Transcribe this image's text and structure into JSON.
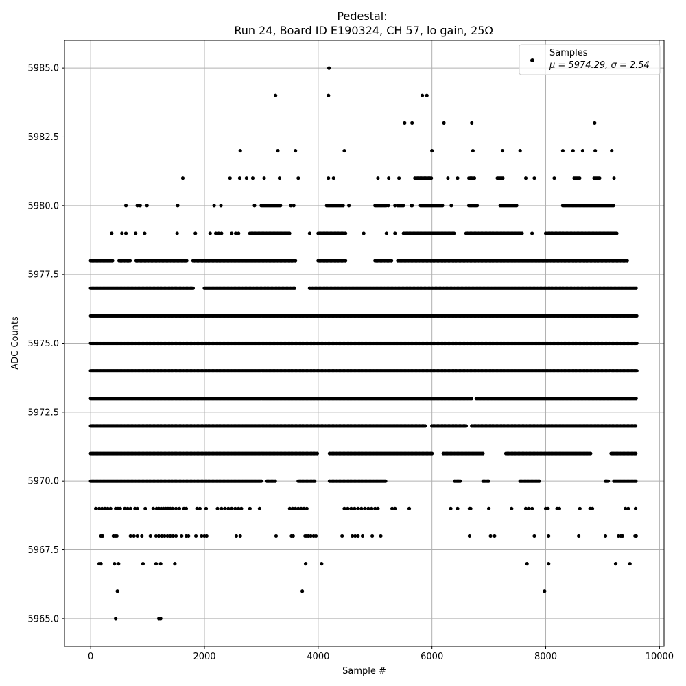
{
  "chart_data": {
    "type": "scatter",
    "title": "Pedestal:",
    "subtitle": "Run 24, Board ID E190324, CH 57, lo gain, 25Ω",
    "xlabel": "Sample #",
    "ylabel": "ADC Counts",
    "xlim": [
      -460,
      10080
    ],
    "ylim": [
      5964.0,
      5986.0
    ],
    "x_ticks": [
      0,
      2000,
      4000,
      6000,
      8000,
      10000
    ],
    "x_tick_labels": [
      "0",
      "2000",
      "4000",
      "6000",
      "8000",
      "10000"
    ],
    "y_ticks": [
      5965.0,
      5967.5,
      5970.0,
      5972.5,
      5975.0,
      5977.5,
      5980.0,
      5982.5,
      5985.0
    ],
    "y_tick_labels": [
      "5965.0",
      "5967.5",
      "5970.0",
      "5972.5",
      "5975.0",
      "5977.5",
      "5980.0",
      "5982.5",
      "5985.0"
    ],
    "grid": true,
    "legend": {
      "placement": "top-right",
      "entries": [
        {
          "label": "Samples",
          "stats": "μ = 5974.29, σ = 2.54"
        }
      ]
    },
    "marker_color": "#000000",
    "series": [
      {
        "name": "Samples",
        "n_samples": 9600,
        "levels": [
          {
            "y": 5970,
            "segments": [
              [
                0,
                3000
              ],
              [
                3100,
                3250
              ],
              [
                3650,
                3950
              ],
              [
                4200,
                5200
              ],
              [
                6400,
                6500
              ],
              [
                6900,
                7000
              ],
              [
                7550,
                7900
              ],
              [
                9050,
                9100
              ],
              [
                9200,
                9600
              ]
            ]
          },
          {
            "y": 5971,
            "segments": [
              [
                0,
                4000
              ],
              [
                4200,
                6000
              ],
              [
                6200,
                6900
              ],
              [
                7300,
                8800
              ],
              [
                9150,
                9600
              ]
            ]
          },
          {
            "y": 5972,
            "segments": [
              [
                0,
                5900
              ],
              [
                6000,
                6600
              ],
              [
                6700,
                9600
              ]
            ]
          },
          {
            "y": 5973,
            "segments": [
              [
                0,
                6700
              ],
              [
                6780,
                9600
              ]
            ]
          },
          {
            "y": 5974,
            "segments": [
              [
                0,
                9600
              ]
            ]
          },
          {
            "y": 5975,
            "segments": [
              [
                0,
                9600
              ]
            ]
          },
          {
            "y": 5976,
            "segments": [
              [
                0,
                9600
              ]
            ]
          },
          {
            "y": 5977,
            "segments": [
              [
                0,
                1800
              ],
              [
                2000,
                3600
              ],
              [
                3850,
                9600
              ]
            ]
          },
          {
            "y": 5978,
            "segments": [
              [
                0,
                400
              ],
              [
                500,
                700
              ],
              [
                800,
                1700
              ],
              [
                1800,
                3600
              ],
              [
                4000,
                4500
              ],
              [
                5000,
                5300
              ],
              [
                5400,
                9450
              ]
            ]
          },
          {
            "y": 5979,
            "segments": [
              [
                2800,
                3500
              ],
              [
                4000,
                4500
              ],
              [
                5500,
                6400
              ],
              [
                6600,
                7600
              ],
              [
                8000,
                9250
              ]
            ]
          },
          {
            "y": 5980,
            "segments": [
              [
                3000,
                3350
              ],
              [
                4150,
                4450
              ],
              [
                5000,
                5200
              ],
              [
                5400,
                5500
              ],
              [
                5800,
                6200
              ],
              [
                6650,
                6800
              ],
              [
                7200,
                7500
              ],
              [
                8300,
                9200
              ]
            ]
          },
          {
            "y": 5981,
            "segments": [
              [
                5700,
                6000
              ],
              [
                6650,
                6750
              ],
              [
                7150,
                7250
              ],
              [
                8500,
                8600
              ],
              [
                8850,
                8950
              ]
            ]
          }
        ],
        "points": [
          [
            440,
            5965
          ],
          [
            1200,
            5965
          ],
          [
            1230,
            5965
          ],
          [
            470,
            5966
          ],
          [
            3720,
            5966
          ],
          [
            7980,
            5966
          ],
          [
            150,
            5967
          ],
          [
            180,
            5967
          ],
          [
            420,
            5967
          ],
          [
            490,
            5967
          ],
          [
            920,
            5967
          ],
          [
            1150,
            5967
          ],
          [
            1230,
            5967
          ],
          [
            1480,
            5967
          ],
          [
            3780,
            5967
          ],
          [
            4060,
            5967
          ],
          [
            7670,
            5967
          ],
          [
            8050,
            5967
          ],
          [
            9230,
            5967
          ],
          [
            9480,
            5967
          ],
          [
            180,
            5968
          ],
          [
            210,
            5968
          ],
          [
            400,
            5968
          ],
          [
            430,
            5968
          ],
          [
            460,
            5968
          ],
          [
            700,
            5968
          ],
          [
            760,
            5968
          ],
          [
            820,
            5968
          ],
          [
            900,
            5968
          ],
          [
            1050,
            5968
          ],
          [
            1150,
            5968
          ],
          [
            1200,
            5968
          ],
          [
            1250,
            5968
          ],
          [
            1300,
            5968
          ],
          [
            1350,
            5968
          ],
          [
            1400,
            5968
          ],
          [
            1450,
            5968
          ],
          [
            1500,
            5968
          ],
          [
            1600,
            5968
          ],
          [
            1680,
            5968
          ],
          [
            1720,
            5968
          ],
          [
            1850,
            5968
          ],
          [
            1950,
            5968
          ],
          [
            2000,
            5968
          ],
          [
            2040,
            5968
          ],
          [
            2560,
            5968
          ],
          [
            2630,
            5968
          ],
          [
            3260,
            5968
          ],
          [
            3530,
            5968
          ],
          [
            3560,
            5968
          ],
          [
            3770,
            5968
          ],
          [
            3800,
            5968
          ],
          [
            3830,
            5968
          ],
          [
            3870,
            5968
          ],
          [
            3920,
            5968
          ],
          [
            3960,
            5968
          ],
          [
            4420,
            5968
          ],
          [
            4600,
            5968
          ],
          [
            4650,
            5968
          ],
          [
            4700,
            5968
          ],
          [
            4780,
            5968
          ],
          [
            4950,
            5968
          ],
          [
            5100,
            5968
          ],
          [
            6660,
            5968
          ],
          [
            7030,
            5968
          ],
          [
            7100,
            5968
          ],
          [
            7800,
            5968
          ],
          [
            8050,
            5968
          ],
          [
            8580,
            5968
          ],
          [
            9050,
            5968
          ],
          [
            9280,
            5968
          ],
          [
            9320,
            5968
          ],
          [
            9350,
            5968
          ],
          [
            9570,
            5968
          ],
          [
            9590,
            5968
          ],
          [
            90,
            5969
          ],
          [
            150,
            5969
          ],
          [
            200,
            5969
          ],
          [
            250,
            5969
          ],
          [
            300,
            5969
          ],
          [
            350,
            5969
          ],
          [
            440,
            5969
          ],
          [
            480,
            5969
          ],
          [
            520,
            5969
          ],
          [
            600,
            5969
          ],
          [
            650,
            5969
          ],
          [
            700,
            5969
          ],
          [
            780,
            5969
          ],
          [
            820,
            5969
          ],
          [
            960,
            5969
          ],
          [
            1100,
            5969
          ],
          [
            1160,
            5969
          ],
          [
            1200,
            5969
          ],
          [
            1240,
            5969
          ],
          [
            1280,
            5969
          ],
          [
            1320,
            5969
          ],
          [
            1360,
            5969
          ],
          [
            1400,
            5969
          ],
          [
            1440,
            5969
          ],
          [
            1500,
            5969
          ],
          [
            1560,
            5969
          ],
          [
            1640,
            5969
          ],
          [
            1680,
            5969
          ],
          [
            1870,
            5969
          ],
          [
            1920,
            5969
          ],
          [
            2030,
            5969
          ],
          [
            2230,
            5969
          ],
          [
            2300,
            5969
          ],
          [
            2360,
            5969
          ],
          [
            2420,
            5969
          ],
          [
            2480,
            5969
          ],
          [
            2540,
            5969
          ],
          [
            2600,
            5969
          ],
          [
            2650,
            5969
          ],
          [
            2800,
            5969
          ],
          [
            2970,
            5969
          ],
          [
            3500,
            5969
          ],
          [
            3550,
            5969
          ],
          [
            3600,
            5969
          ],
          [
            3650,
            5969
          ],
          [
            3700,
            5969
          ],
          [
            3750,
            5969
          ],
          [
            3800,
            5969
          ],
          [
            4460,
            5969
          ],
          [
            4520,
            5969
          ],
          [
            4580,
            5969
          ],
          [
            4640,
            5969
          ],
          [
            4700,
            5969
          ],
          [
            4760,
            5969
          ],
          [
            4820,
            5969
          ],
          [
            4880,
            5969
          ],
          [
            4940,
            5969
          ],
          [
            5000,
            5969
          ],
          [
            5050,
            5969
          ],
          [
            5300,
            5969
          ],
          [
            5350,
            5969
          ],
          [
            5600,
            5969
          ],
          [
            6330,
            5969
          ],
          [
            6450,
            5969
          ],
          [
            6660,
            5969
          ],
          [
            6680,
            5969
          ],
          [
            7000,
            5969
          ],
          [
            7400,
            5969
          ],
          [
            7650,
            5969
          ],
          [
            7700,
            5969
          ],
          [
            7760,
            5969
          ],
          [
            8000,
            5969
          ],
          [
            8040,
            5969
          ],
          [
            8200,
            5969
          ],
          [
            8240,
            5969
          ],
          [
            8600,
            5969
          ],
          [
            8780,
            5969
          ],
          [
            8820,
            5969
          ],
          [
            9400,
            5969
          ],
          [
            9450,
            5969
          ],
          [
            9580,
            5969
          ],
          [
            3250,
            5984
          ],
          [
            4180,
            5984
          ],
          [
            5830,
            5984
          ],
          [
            5910,
            5984
          ],
          [
            4190,
            5985
          ],
          [
            5520,
            5983
          ],
          [
            5650,
            5983
          ],
          [
            6210,
            5983
          ],
          [
            6700,
            5983
          ],
          [
            8860,
            5983
          ],
          [
            2630,
            5982
          ],
          [
            3290,
            5982
          ],
          [
            3600,
            5982
          ],
          [
            4460,
            5982
          ],
          [
            6000,
            5982
          ],
          [
            6720,
            5982
          ],
          [
            7240,
            5982
          ],
          [
            7550,
            5982
          ],
          [
            8300,
            5982
          ],
          [
            8480,
            5982
          ],
          [
            8650,
            5982
          ],
          [
            8870,
            5982
          ],
          [
            9160,
            5982
          ],
          [
            1620,
            5981
          ],
          [
            2450,
            5981
          ],
          [
            2620,
            5981
          ],
          [
            2740,
            5981
          ],
          [
            2850,
            5981
          ],
          [
            3050,
            5981
          ],
          [
            3320,
            5981
          ],
          [
            3650,
            5981
          ],
          [
            4180,
            5981
          ],
          [
            4270,
            5981
          ],
          [
            5050,
            5981
          ],
          [
            5240,
            5981
          ],
          [
            5420,
            5981
          ],
          [
            6280,
            5981
          ],
          [
            6450,
            5981
          ],
          [
            7650,
            5981
          ],
          [
            7800,
            5981
          ],
          [
            8150,
            5981
          ],
          [
            9200,
            5981
          ],
          [
            620,
            5980
          ],
          [
            820,
            5980
          ],
          [
            870,
            5980
          ],
          [
            990,
            5980
          ],
          [
            1530,
            5980
          ],
          [
            2170,
            5980
          ],
          [
            2290,
            5980
          ],
          [
            2880,
            5980
          ],
          [
            3520,
            5980
          ],
          [
            3570,
            5980
          ],
          [
            4540,
            5980
          ],
          [
            5230,
            5980
          ],
          [
            5350,
            5980
          ],
          [
            5640,
            5980
          ],
          [
            5650,
            5980
          ],
          [
            6340,
            5980
          ],
          [
            370,
            5979
          ],
          [
            550,
            5979
          ],
          [
            620,
            5979
          ],
          [
            790,
            5979
          ],
          [
            950,
            5979
          ],
          [
            1520,
            5979
          ],
          [
            1840,
            5979
          ],
          [
            2100,
            5979
          ],
          [
            2200,
            5979
          ],
          [
            2250,
            5979
          ],
          [
            2300,
            5979
          ],
          [
            2480,
            5979
          ],
          [
            2550,
            5979
          ],
          [
            2600,
            5979
          ],
          [
            3850,
            5979
          ],
          [
            4800,
            5979
          ],
          [
            5200,
            5979
          ],
          [
            5350,
            5979
          ],
          [
            7760,
            5979
          ]
        ]
      }
    ]
  }
}
